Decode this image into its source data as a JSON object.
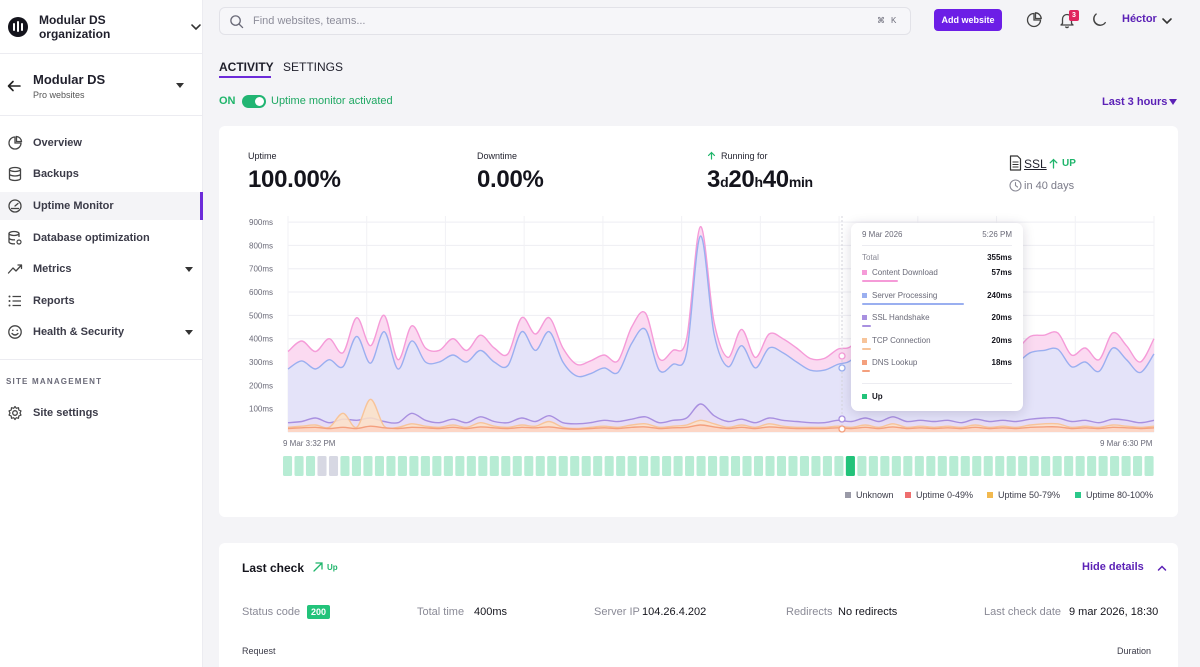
{
  "org": {
    "name": "Modular DS organization"
  },
  "site": {
    "name": "Modular DS",
    "subtitle": "Pro websites"
  },
  "nav": {
    "items": [
      {
        "label": "Overview",
        "icon": "chart-pie-icon",
        "active": false,
        "has_caret": false
      },
      {
        "label": "Backups",
        "icon": "database-icon",
        "active": false,
        "has_caret": false
      },
      {
        "label": "Uptime Monitor",
        "icon": "gauge-icon",
        "active": true,
        "has_caret": false
      },
      {
        "label": "Database optimization",
        "icon": "database-settings-icon",
        "active": false,
        "has_caret": false
      },
      {
        "label": "Metrics",
        "icon": "trend-line-icon",
        "active": false,
        "has_caret": true
      },
      {
        "label": "Reports",
        "icon": "list-icon",
        "active": false,
        "has_caret": false
      },
      {
        "label": "Health & Security",
        "icon": "smiley-icon",
        "active": false,
        "has_caret": true
      }
    ],
    "section_title": "SITE MANAGEMENT",
    "site_settings_label": "Site settings"
  },
  "header": {
    "search_placeholder": "Find websites, teams...",
    "kbd_1": "⌘",
    "kbd_2": "K",
    "add_website": "Add website",
    "notifications_count": "3",
    "user_name": "Héctor"
  },
  "tabs": {
    "activity": "ACTIVITY",
    "settings": "SETTINGS"
  },
  "monitor": {
    "on_label": "ON",
    "status_text": "Uptime monitor activated",
    "range": "Last 3 hours"
  },
  "stats": {
    "uptime_label": "Uptime",
    "uptime_value": "100.00%",
    "downtime_label": "Downtime",
    "downtime_value": "0.00%",
    "running_label": "Running for",
    "running_days": "3",
    "running_days_unit": "d",
    "running_hours": "20",
    "running_hours_unit": "h",
    "running_minutes": "40",
    "running_minutes_unit": "min",
    "ssl_label": "SSL",
    "ssl_status": "UP",
    "ssl_expiry": "in 40 days"
  },
  "chart_data": {
    "type": "area",
    "y_ticks": [
      "100ms",
      "200ms",
      "300ms",
      "400ms",
      "500ms",
      "600ms",
      "700ms",
      "800ms",
      "900ms"
    ],
    "ylim": [
      0,
      1000
    ],
    "x_start_label": "9 Mar 3:32 PM",
    "x_end_label": "9 Mar 6:30 PM",
    "series": [
      {
        "name": "Content Download",
        "color": "#f59bd8",
        "values": [
          345,
          390,
          345,
          400,
          340,
          490,
          370,
          500,
          310,
          455,
          360,
          350,
          400,
          350,
          415,
          360,
          335,
          490,
          420,
          490,
          360,
          290,
          305,
          330,
          305,
          450,
          510,
          315,
          350,
          400,
          880,
          470,
          320,
          440,
          320,
          420,
          400,
          360,
          315,
          315,
          355,
          370,
          470,
          350,
          485,
          355,
          385,
          360,
          375,
          315,
          395,
          345,
          385,
          360,
          410,
          415,
          425,
          330,
          360,
          310,
          425,
          370,
          300,
          400
        ]
      },
      {
        "name": "Server Processing",
        "color": "#9aaff0",
        "values": [
          270,
          305,
          270,
          310,
          280,
          410,
          295,
          430,
          270,
          390,
          300,
          300,
          330,
          300,
          350,
          300,
          285,
          430,
          350,
          430,
          300,
          240,
          250,
          275,
          255,
          380,
          440,
          265,
          290,
          340,
          840,
          420,
          280,
          370,
          275,
          360,
          340,
          300,
          265,
          265,
          290,
          310,
          400,
          295,
          420,
          300,
          320,
          300,
          310,
          265,
          330,
          290,
          320,
          300,
          340,
          350,
          355,
          280,
          300,
          260,
          360,
          310,
          255,
          335
        ]
      },
      {
        "name": "SSL Handshake",
        "color": "#a890e0",
        "values": [
          40,
          45,
          60,
          40,
          55,
          50,
          60,
          45,
          40,
          80,
          50,
          40,
          55,
          40,
          65,
          45,
          40,
          60,
          45,
          70,
          40,
          35,
          40,
          50,
          45,
          55,
          65,
          40,
          50,
          60,
          120,
          70,
          45,
          55,
          40,
          60,
          50,
          45,
          40,
          40,
          50,
          45,
          60,
          45,
          65,
          45,
          50,
          45,
          50,
          40,
          55,
          45,
          50,
          45,
          55,
          60,
          60,
          45,
          50,
          40,
          55,
          50,
          40,
          50
        ]
      },
      {
        "name": "TCP Connection",
        "color": "#f7c49a",
        "values": [
          20,
          25,
          30,
          20,
          80,
          20,
          140,
          25,
          20,
          35,
          25,
          20,
          30,
          20,
          40,
          25,
          20,
          30,
          25,
          45,
          20,
          15,
          20,
          25,
          20,
          30,
          35,
          20,
          25,
          30,
          50,
          35,
          20,
          30,
          20,
          35,
          25,
          20,
          20,
          20,
          25,
          20,
          30,
          20,
          35,
          20,
          25,
          20,
          25,
          20,
          30,
          20,
          25,
          20,
          30,
          35,
          35,
          20,
          25,
          20,
          30,
          25,
          20,
          25
        ]
      },
      {
        "name": "DNS Lookup",
        "color": "#f4a07e",
        "values": [
          15,
          18,
          20,
          15,
          20,
          15,
          25,
          18,
          15,
          20,
          18,
          15,
          20,
          15,
          22,
          18,
          15,
          20,
          18,
          22,
          15,
          12,
          15,
          18,
          15,
          20,
          22,
          15,
          18,
          20,
          30,
          22,
          15,
          20,
          15,
          22,
          18,
          15,
          15,
          15,
          18,
          15,
          20,
          15,
          22,
          15,
          18,
          15,
          18,
          15,
          20,
          15,
          18,
          15,
          20,
          22,
          22,
          15,
          18,
          15,
          20,
          18,
          15,
          18
        ]
      }
    ],
    "uptime_bars": {
      "count": 76,
      "unknown_indices": [
        3,
        4
      ],
      "highlight_index": 49,
      "colors": {
        "up": "#b7ecd4",
        "unknown": "#d7d8e3",
        "highlight": "#22c37a"
      }
    },
    "legend": [
      {
        "label": "Unknown",
        "color": "#9a9aa7"
      },
      {
        "label": "Uptime 0-49%",
        "color": "#ee6e6e"
      },
      {
        "label": "Uptime 50-79%",
        "color": "#f2b94f"
      },
      {
        "label": "Uptime 80-100%",
        "color": "#2bc88a"
      }
    ]
  },
  "tooltip": {
    "date": "9 Mar 2026",
    "time": "5:26 PM",
    "total_label": "Total",
    "total_value": "355ms",
    "rows": [
      {
        "label": "Content Download",
        "value": "57ms",
        "color": "#f59bd8",
        "fraction": 0.24
      },
      {
        "label": "Server Processing",
        "value": "240ms",
        "color": "#9aaff0",
        "fraction": 0.68
      },
      {
        "label": "SSL Handshake",
        "value": "20ms",
        "color": "#a890e0",
        "fraction": 0.06
      },
      {
        "label": "TCP Connection",
        "value": "20ms",
        "color": "#f7c49a",
        "fraction": 0.06
      },
      {
        "label": "DNS Lookup",
        "value": "18ms",
        "color": "#f4a07e",
        "fraction": 0.05
      }
    ],
    "status": "Up"
  },
  "last_check": {
    "title": "Last check",
    "status": "Up",
    "hide_details": "Hide details",
    "status_code_label": "Status code",
    "status_code": "200",
    "total_time_label": "Total time",
    "total_time": "400ms",
    "server_ip_label": "Server IP",
    "server_ip": "104.26.4.202",
    "redirects_label": "Redirects",
    "redirects": "No redirects",
    "date_label": "Last check date",
    "date": "9 mar 2026, 18:30",
    "request_header": "Request",
    "duration_header": "Duration"
  }
}
